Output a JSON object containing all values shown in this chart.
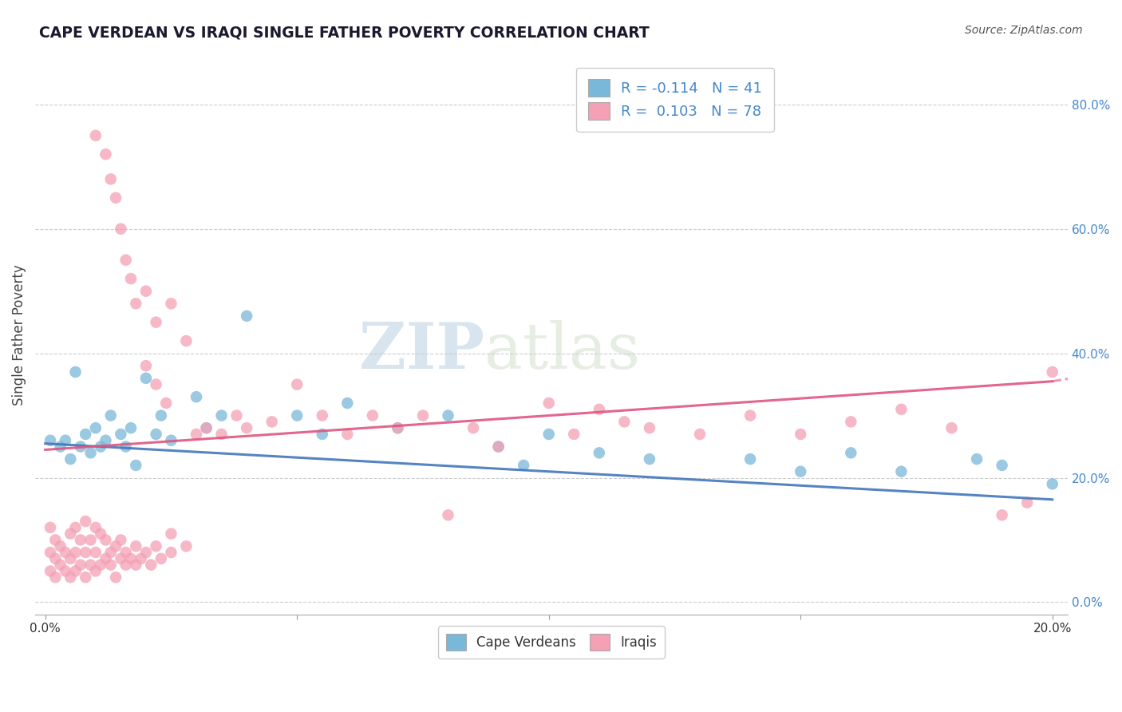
{
  "title": "CAPE VERDEAN VS IRAQI SINGLE FATHER POVERTY CORRELATION CHART",
  "source": "Source: ZipAtlas.com",
  "ylabel": "Single Father Poverty",
  "right_yticks": [
    0.0,
    0.2,
    0.4,
    0.6,
    0.8
  ],
  "right_yticklabels": [
    "0.0%",
    "20.0%",
    "40.0%",
    "60.0%",
    "80.0%"
  ],
  "xlim": [
    0.0,
    0.2
  ],
  "ylim": [
    -0.02,
    0.88
  ],
  "blue_color": "#7ab8d9",
  "pink_color": "#f4a0b5",
  "trend_blue_color": "#4477bb",
  "trend_pink_color": "#e05580",
  "watermark_zip": "ZIP",
  "watermark_atlas": "atlas",
  "blue_scatter_x": [
    0.001,
    0.003,
    0.004,
    0.005,
    0.006,
    0.007,
    0.008,
    0.009,
    0.01,
    0.011,
    0.012,
    0.013,
    0.015,
    0.016,
    0.017,
    0.018,
    0.02,
    0.022,
    0.023,
    0.025,
    0.03,
    0.032,
    0.035,
    0.04,
    0.05,
    0.055,
    0.06,
    0.07,
    0.08,
    0.09,
    0.095,
    0.1,
    0.11,
    0.12,
    0.14,
    0.15,
    0.16,
    0.17,
    0.185,
    0.19,
    0.2
  ],
  "blue_scatter_y": [
    0.26,
    0.25,
    0.26,
    0.23,
    0.37,
    0.25,
    0.27,
    0.24,
    0.28,
    0.25,
    0.26,
    0.3,
    0.27,
    0.25,
    0.28,
    0.22,
    0.36,
    0.27,
    0.3,
    0.26,
    0.33,
    0.28,
    0.3,
    0.46,
    0.3,
    0.27,
    0.32,
    0.28,
    0.3,
    0.25,
    0.22,
    0.27,
    0.24,
    0.23,
    0.23,
    0.21,
    0.24,
    0.21,
    0.23,
    0.22,
    0.19
  ],
  "pink_scatter_x": [
    0.001,
    0.001,
    0.001,
    0.002,
    0.002,
    0.002,
    0.003,
    0.003,
    0.004,
    0.004,
    0.005,
    0.005,
    0.005,
    0.006,
    0.006,
    0.006,
    0.007,
    0.007,
    0.008,
    0.008,
    0.008,
    0.009,
    0.009,
    0.01,
    0.01,
    0.01,
    0.011,
    0.011,
    0.012,
    0.012,
    0.013,
    0.013,
    0.014,
    0.014,
    0.015,
    0.015,
    0.016,
    0.016,
    0.017,
    0.018,
    0.018,
    0.019,
    0.02,
    0.021,
    0.022,
    0.023,
    0.025,
    0.025,
    0.028,
    0.03,
    0.032,
    0.035,
    0.038,
    0.04,
    0.045,
    0.05,
    0.055,
    0.06,
    0.065,
    0.07,
    0.075,
    0.08,
    0.085,
    0.09,
    0.1,
    0.11,
    0.12,
    0.13,
    0.14,
    0.15,
    0.16,
    0.17,
    0.18,
    0.19,
    0.195,
    0.2,
    0.105,
    0.115
  ],
  "pink_scatter_y": [
    0.05,
    0.08,
    0.12,
    0.04,
    0.07,
    0.1,
    0.06,
    0.09,
    0.05,
    0.08,
    0.04,
    0.07,
    0.11,
    0.05,
    0.08,
    0.12,
    0.06,
    0.1,
    0.04,
    0.08,
    0.13,
    0.06,
    0.1,
    0.05,
    0.08,
    0.12,
    0.06,
    0.11,
    0.07,
    0.1,
    0.06,
    0.08,
    0.04,
    0.09,
    0.07,
    0.1,
    0.06,
    0.08,
    0.07,
    0.06,
    0.09,
    0.07,
    0.08,
    0.06,
    0.09,
    0.07,
    0.08,
    0.11,
    0.09,
    0.27,
    0.28,
    0.27,
    0.3,
    0.28,
    0.29,
    0.35,
    0.3,
    0.27,
    0.3,
    0.28,
    0.3,
    0.14,
    0.28,
    0.25,
    0.32,
    0.31,
    0.28,
    0.27,
    0.3,
    0.27,
    0.29,
    0.31,
    0.28,
    0.14,
    0.16,
    0.37,
    0.27,
    0.29
  ],
  "pink_high_x": [
    0.01,
    0.012,
    0.013,
    0.014,
    0.015,
    0.016,
    0.017,
    0.018,
    0.02,
    0.022,
    0.025,
    0.028,
    0.02,
    0.022,
    0.024
  ],
  "pink_high_y": [
    0.75,
    0.72,
    0.68,
    0.65,
    0.6,
    0.55,
    0.52,
    0.48,
    0.5,
    0.45,
    0.48,
    0.42,
    0.38,
    0.35,
    0.32
  ],
  "blue_trend_y0": 0.255,
  "blue_trend_y1": 0.165,
  "pink_trend_y0": 0.245,
  "pink_trend_y1": 0.355,
  "pink_trend_dashed_y1": 0.395
}
